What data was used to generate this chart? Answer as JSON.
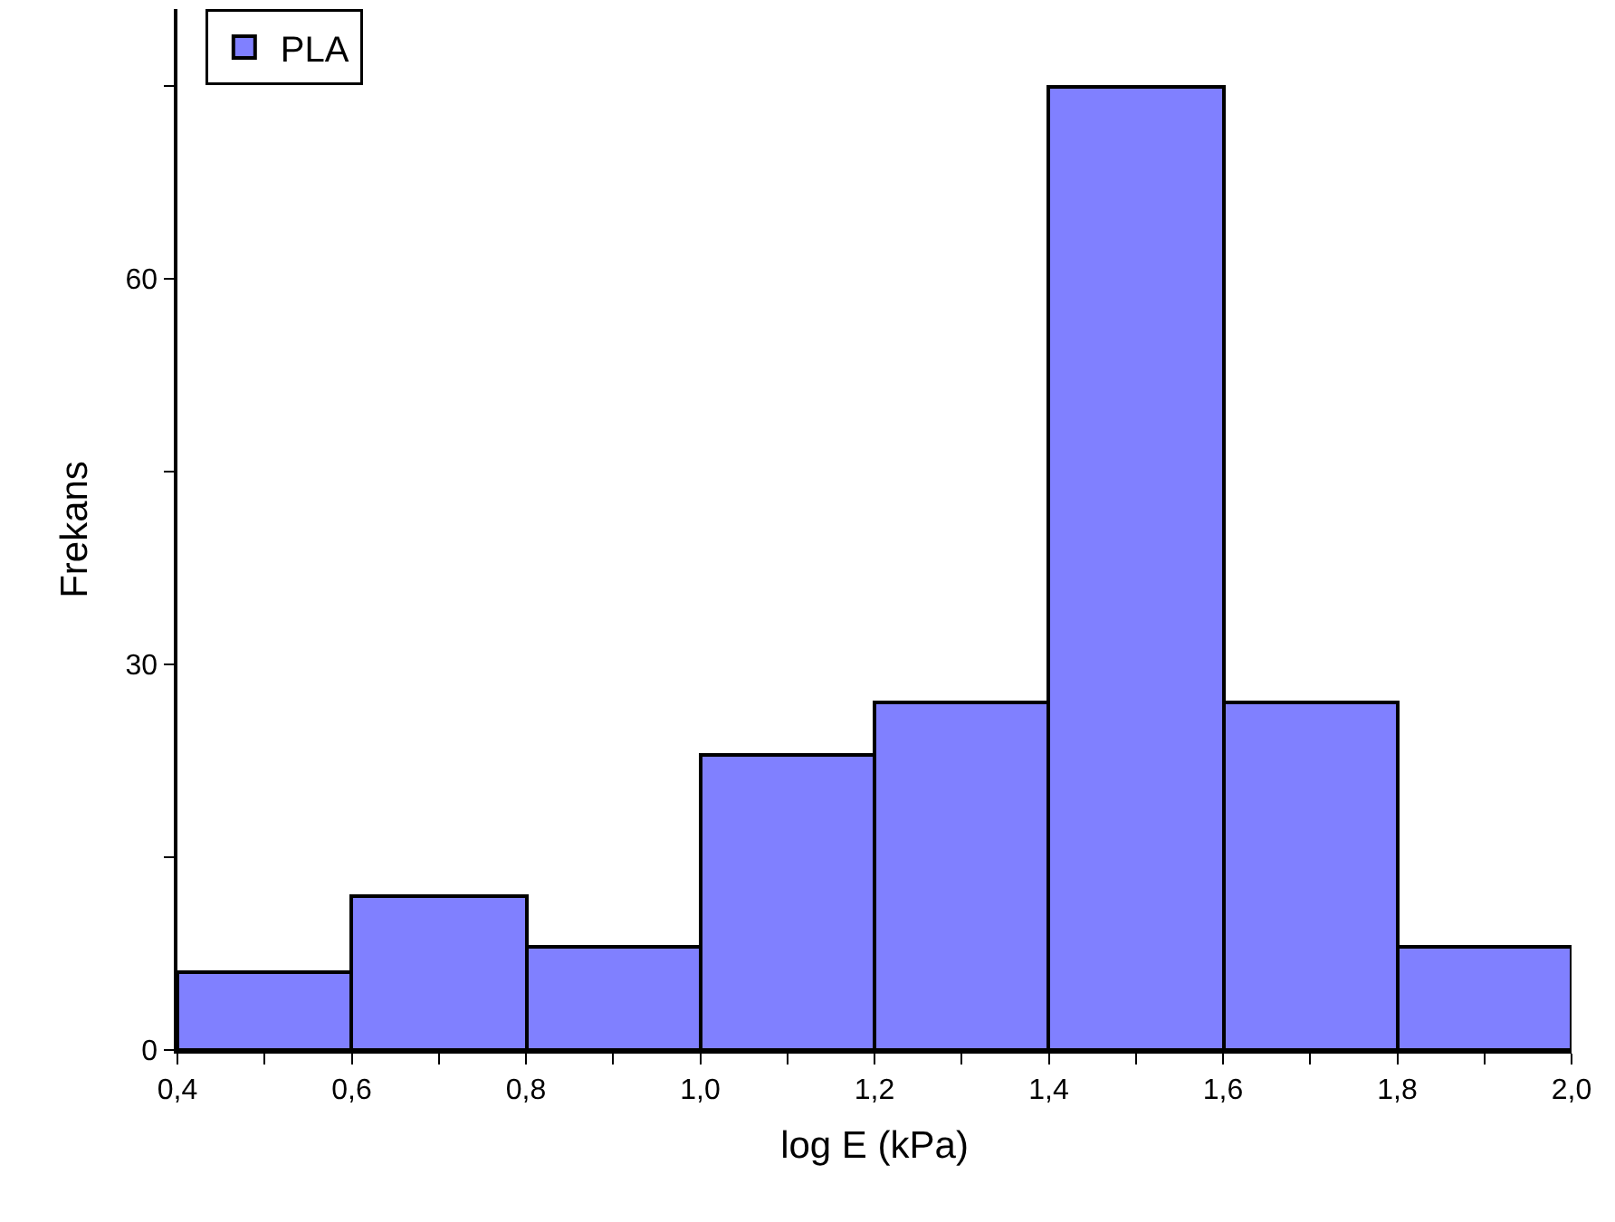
{
  "chart_data": {
    "type": "histogram",
    "xlabel": "log E (kPa)",
    "ylabel": "Frekans",
    "bins": [
      0.4,
      0.6,
      0.8,
      1.0,
      1.2,
      1.4,
      1.6,
      1.8,
      2.0
    ],
    "series": [
      {
        "name": "PLA",
        "color": "#8080ff",
        "values": [
          6,
          12,
          8,
          23,
          27,
          75,
          27,
          8
        ]
      }
    ],
    "xlim": [
      0.4,
      2.0
    ],
    "xticks": [
      {
        "value": 0.4,
        "label": "0,4"
      },
      {
        "value": 0.5,
        "label": null
      },
      {
        "value": 0.6,
        "label": "0,6"
      },
      {
        "value": 0.7,
        "label": null
      },
      {
        "value": 0.8,
        "label": "0,8"
      },
      {
        "value": 0.9,
        "label": null
      },
      {
        "value": 1.0,
        "label": "1,0"
      },
      {
        "value": 1.1,
        "label": null
      },
      {
        "value": 1.2,
        "label": "1,2"
      },
      {
        "value": 1.3,
        "label": null
      },
      {
        "value": 1.4,
        "label": "1,4"
      },
      {
        "value": 1.5,
        "label": null
      },
      {
        "value": 1.6,
        "label": "1,6"
      },
      {
        "value": 1.7,
        "label": null
      },
      {
        "value": 1.8,
        "label": "1,8"
      },
      {
        "value": 1.9,
        "label": null
      },
      {
        "value": 2.0,
        "label": "2,0"
      }
    ],
    "ylim": [
      0,
      81
    ],
    "yticks": [
      0,
      {
        "value": 15,
        "label": null
      },
      30,
      {
        "value": 45,
        "label": null
      },
      60,
      {
        "value": 75,
        "label": null
      }
    ],
    "legend": "top left"
  }
}
